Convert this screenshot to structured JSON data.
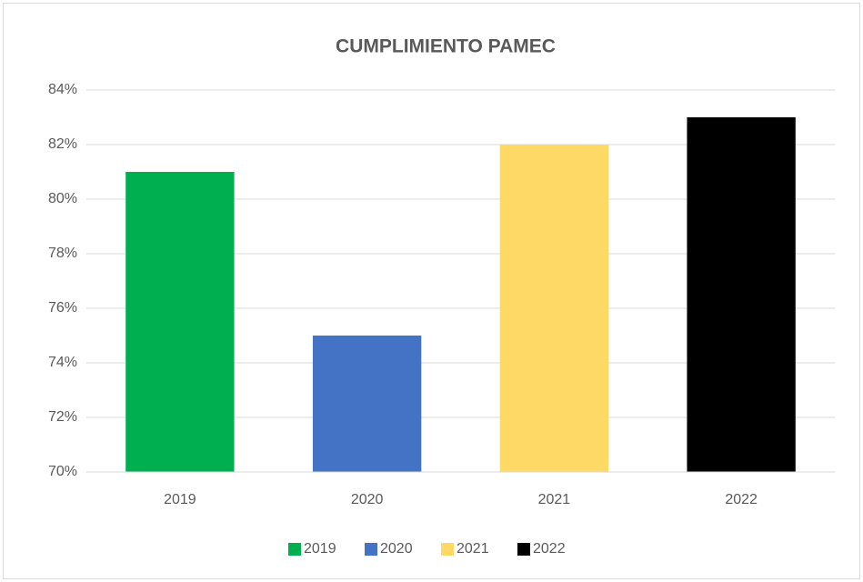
{
  "chart_data": {
    "type": "bar",
    "title": "CUMPLIMIENTO PAMEC",
    "categories": [
      "2019",
      "2020",
      "2021",
      "2022"
    ],
    "values": [
      81,
      75,
      82,
      83
    ],
    "colors": [
      "#00b050",
      "#4472c4",
      "#ffd966",
      "#000000"
    ],
    "ylim": [
      70,
      84
    ],
    "yticks": [
      {
        "value": 70,
        "label": "70%"
      },
      {
        "value": 72,
        "label": "72%"
      },
      {
        "value": 74,
        "label": "74%"
      },
      {
        "value": 76,
        "label": "76%"
      },
      {
        "value": 78,
        "label": "78%"
      },
      {
        "value": 80,
        "label": "80%"
      },
      {
        "value": 82,
        "label": "82%"
      },
      {
        "value": 84,
        "label": "84%"
      }
    ],
    "grid": true,
    "legend": "bottom"
  }
}
